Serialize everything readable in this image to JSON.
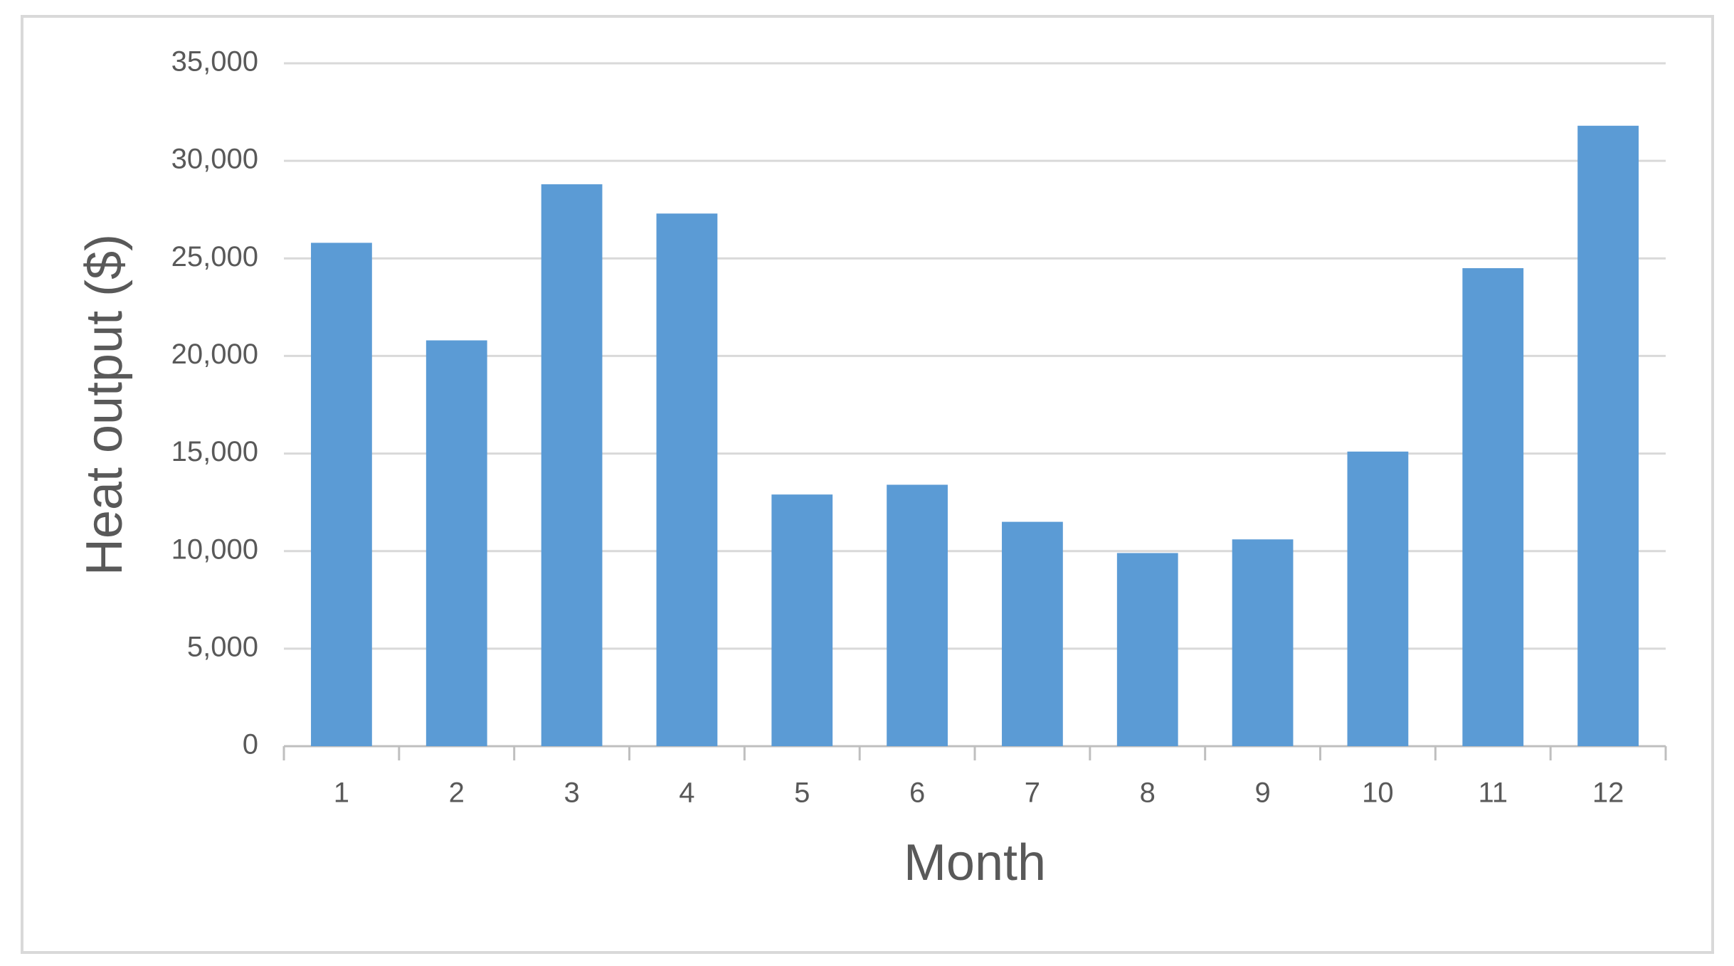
{
  "chart_data": {
    "type": "bar",
    "x_label": "Month",
    "y_label": "Heat output ($)",
    "categories": [
      "1",
      "2",
      "3",
      "4",
      "5",
      "6",
      "7",
      "8",
      "9",
      "10",
      "11",
      "12"
    ],
    "values": [
      25800,
      20800,
      28800,
      27300,
      12900,
      13400,
      11500,
      9900,
      10600,
      15100,
      24500,
      31800
    ],
    "color": "#5b9bd5",
    "ylim": [
      0,
      35000
    ],
    "yticks": [
      0,
      {
        "value": 5000,
        "label": "5,000"
      },
      {
        "value": 10000,
        "label": "10,000"
      },
      {
        "value": 15000,
        "label": "15,000"
      },
      {
        "value": 20000,
        "label": "20,000"
      },
      {
        "value": 25000,
        "label": "25,000"
      },
      {
        "value": 30000,
        "label": "30,000"
      },
      {
        "value": 35000,
        "label": "35,000"
      }
    ],
    "grid": true
  }
}
